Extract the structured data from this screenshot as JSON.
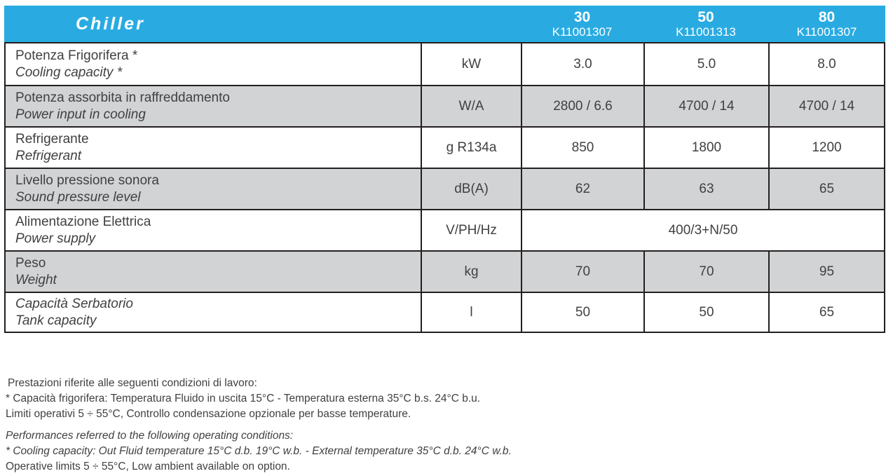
{
  "colors": {
    "accent_cyan": "#29ABE2",
    "row_shade": "#D1D3D4",
    "border": "#231F20",
    "text": "#414042"
  },
  "table": {
    "header": {
      "title": "Chiller",
      "models": [
        {
          "size": "30",
          "code": "K11001307"
        },
        {
          "size": "50",
          "code": "K11001313"
        },
        {
          "size": "80",
          "code": "K11001307"
        }
      ]
    },
    "rows": [
      {
        "label_it": "Potenza Frigorifera *",
        "label_en": "Cooling capacity *",
        "unit": "kW",
        "values": [
          "3.0",
          "5.0",
          "8.0"
        ]
      },
      {
        "label_it": "Potenza assorbita in raffreddamento",
        "label_en": "Power input in cooling",
        "unit": "W/A",
        "values": [
          "2800 / 6.6",
          "4700 / 14",
          "4700 / 14"
        ]
      },
      {
        "label_it": "Refrigerante",
        "label_en": "Refrigerant",
        "unit": "g R134a",
        "values": [
          "850",
          "1800",
          "1200"
        ]
      },
      {
        "label_it": "Livello pressione sonora",
        "label_en": "Sound pressure level",
        "unit": "dB(A)",
        "values": [
          "62",
          "63",
          "65"
        ]
      },
      {
        "label_it": "Alimentazione Elettrica",
        "label_en": "Power supply",
        "unit": "V/PH/Hz",
        "merged_value": "400/3+N/50"
      },
      {
        "label_it": "Peso",
        "label_en": "Weight",
        "unit": "kg",
        "values": [
          "70",
          "70",
          "95"
        ]
      },
      {
        "label_it": "Capacità Serbatorio",
        "label_en": "Tank capacity",
        "unit": "l",
        "values": [
          "50",
          "50",
          "65"
        ]
      }
    ]
  },
  "footnotes": {
    "italian": [
      "Prestazioni riferite alle seguenti condizioni di lavoro:",
      "* Capacità frigorifera: Temperatura Fluido in uscita 15°C - Temperatura esterna 35°C b.s. 24°C b.u.",
      "Limiti operativi 5 ÷ 55°C, Controllo condensazione opzionale per basse temperature."
    ],
    "english": [
      "Performances referred to the following operating conditions:",
      "* Cooling capacity: Out Fluid temperature 15°C d.b. 19°C w.b. - External temperature 35°C d.b. 24°C w.b.",
      "Operative limits 5 ÷ 55°C, Low ambient available on option."
    ]
  }
}
